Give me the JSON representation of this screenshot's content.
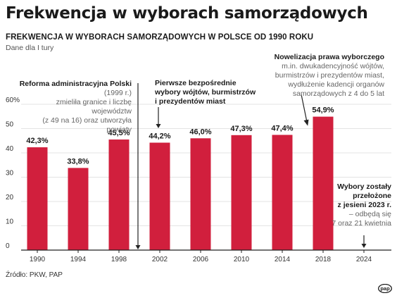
{
  "title": "Frekwencja w wyborach samorządowych",
  "subtitle": "FREKWENCJA W WYBORACH SAMORZĄDOWYCH W POLSCE OD 1990 ROKU",
  "note": "Dane dla I tury",
  "source": "Źródło: PKW, PAP",
  "logo_text": "pap",
  "annotations": {
    "reform": {
      "title": "Reforma administracyjna Polski",
      "year": "(1999 r.)",
      "line2": "zmieliła granice i liczbę województw",
      "line3": "(z 49 na 16) oraz utworzyła powiaty"
    },
    "direct": {
      "line1": "Pierwsze bezpośrednie",
      "line2": "wybory wójtów, burmistrzów",
      "line3": "i prezydentów miast"
    },
    "amend": {
      "title": "Nowelizacja prawa wyborczego",
      "line2": "m.in. dwukadencyjność wójtów,",
      "line3": "burmistrzów i prezydentów miast,",
      "line4": "wydłużenie kadencji organów",
      "line5": "samorządowych z 4 do 5 lat"
    },
    "postponed": {
      "line1": "Wybory zostały",
      "line2": "przełożone",
      "line3": "z jesieni 2023 r.",
      "line4": "– odbędą się",
      "line5": "7 oraz 21 kwietnia"
    }
  },
  "colors": {
    "bar": "#d11f3d",
    "grid": "#e3e3e3",
    "axis": "#222222",
    "text": "#1a1a1a"
  },
  "chart_data": {
    "type": "bar",
    "categories": [
      "1990",
      "1994",
      "1998",
      "2002",
      "2006",
      "2010",
      "2014",
      "2018",
      "2024"
    ],
    "values": [
      42.3,
      33.8,
      45.5,
      44.2,
      46.0,
      47.3,
      47.4,
      54.9,
      null
    ],
    "value_labels": [
      "42,3%",
      "33,8%",
      "45,5%",
      "44,2%",
      "46,0%",
      "47,3%",
      "47,4%",
      "54,9%",
      ""
    ],
    "yticks": [
      "0",
      "10",
      "20",
      "30",
      "40",
      "50",
      "60%"
    ],
    "ylim": [
      0,
      60
    ],
    "grid": true,
    "title": "FREKWENCJA W WYBORACH SAMORZĄDOWYCH W POLSCE OD 1990 ROKU",
    "xlabel": "",
    "ylabel": ""
  }
}
